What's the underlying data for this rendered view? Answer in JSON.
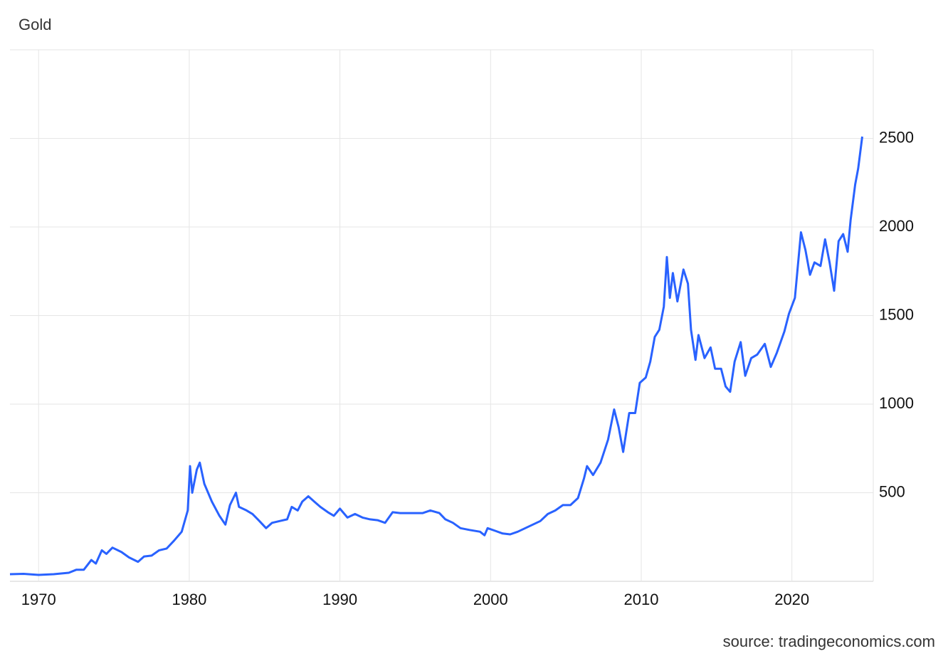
{
  "chart_data": {
    "type": "line",
    "title": "Gold",
    "source": "source: tradingeconomics.com",
    "x": [
      1968.1,
      1969,
      1970,
      1971,
      1972,
      1972.5,
      1973,
      1973.5,
      1973.8,
      1974.2,
      1974.5,
      1974.9,
      1975.5,
      1976,
      1976.6,
      1977,
      1977.5,
      1978,
      1978.5,
      1979,
      1979.5,
      1979.9,
      1980.05,
      1980.2,
      1980.5,
      1980.7,
      1981,
      1981.5,
      1982,
      1982.4,
      1982.7,
      1983.1,
      1983.3,
      1983.8,
      1984.2,
      1984.6,
      1985.1,
      1985.5,
      1986,
      1986.5,
      1986.8,
      1987.2,
      1987.5,
      1987.9,
      1988.3,
      1988.7,
      1989.2,
      1989.6,
      1990,
      1990.5,
      1991,
      1991.5,
      1992,
      1992.5,
      1993,
      1993.5,
      1994,
      1994.5,
      1995,
      1995.5,
      1996,
      1996.6,
      1997,
      1997.5,
      1998,
      1998.6,
      1999.3,
      1999.6,
      1999.8,
      2000.3,
      2000.8,
      2001.3,
      2001.8,
      2002.3,
      2002.8,
      2003.3,
      2003.8,
      2004.3,
      2004.8,
      2005.3,
      2005.8,
      2006.2,
      2006.4,
      2006.8,
      2007.3,
      2007.8,
      2008.2,
      2008.5,
      2008.8,
      2009.2,
      2009.6,
      2009.9,
      2010.3,
      2010.6,
      2010.9,
      2011.2,
      2011.5,
      2011.7,
      2011.9,
      2012.1,
      2012.4,
      2012.8,
      2013.1,
      2013.3,
      2013.6,
      2013.8,
      2014.2,
      2014.6,
      2014.9,
      2015.3,
      2015.6,
      2015.9,
      2016.2,
      2016.6,
      2016.9,
      2017.3,
      2017.7,
      2018.2,
      2018.6,
      2019,
      2019.5,
      2019.8,
      2020.2,
      2020.6,
      2020.9,
      2021.2,
      2021.5,
      2021.9,
      2022.2,
      2022.5,
      2022.8,
      2023.1,
      2023.4,
      2023.7,
      2023.9,
      2024.2,
      2024.4,
      2024.67
    ],
    "series": [
      {
        "name": "Gold",
        "color": "#2962ff",
        "values": [
          40,
          42,
          36,
          40,
          48,
          65,
          65,
          120,
          100,
          175,
          155,
          190,
          165,
          135,
          110,
          140,
          145,
          175,
          185,
          230,
          280,
          400,
          650,
          500,
          630,
          670,
          550,
          450,
          370,
          320,
          430,
          500,
          420,
          400,
          380,
          345,
          300,
          330,
          340,
          350,
          420,
          400,
          450,
          480,
          450,
          420,
          390,
          370,
          410,
          360,
          380,
          360,
          350,
          345,
          330,
          390,
          385,
          385,
          385,
          385,
          400,
          385,
          350,
          330,
          300,
          290,
          280,
          260,
          300,
          285,
          270,
          265,
          280,
          300,
          320,
          340,
          380,
          400,
          430,
          430,
          470,
          580,
          650,
          600,
          670,
          800,
          970,
          870,
          730,
          950,
          950,
          1120,
          1150,
          1240,
          1380,
          1420,
          1550,
          1830,
          1600,
          1740,
          1580,
          1760,
          1680,
          1420,
          1250,
          1390,
          1260,
          1320,
          1200,
          1200,
          1100,
          1070,
          1240,
          1350,
          1160,
          1260,
          1280,
          1340,
          1210,
          1290,
          1410,
          1510,
          1600,
          1970,
          1870,
          1730,
          1800,
          1780,
          1930,
          1800,
          1640,
          1920,
          1960,
          1860,
          2040,
          2240,
          2330,
          2510
        ]
      }
    ],
    "xlim": [
      1968.1,
      2025.4
    ],
    "xticks": [
      1970,
      1980,
      1990,
      2000,
      2010,
      2020
    ],
    "ylim": [
      0,
      3000
    ],
    "yticks": [
      500,
      1000,
      1500,
      2000,
      2500
    ],
    "grid": true
  }
}
